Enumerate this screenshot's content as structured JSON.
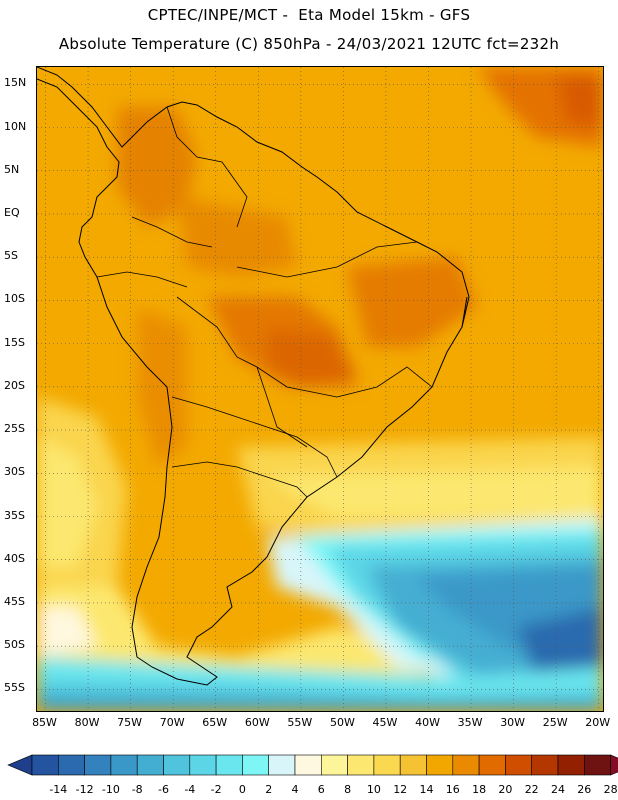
{
  "header": {
    "line1": "CPTEC/INPE/MCT -  Eta Model 15km - GFS",
    "line2": "Absolute Temperature (C) 850hPa - 24/03/2021 12UTC fct=232h"
  },
  "map": {
    "lat_labels": [
      "15N",
      "10N",
      "5N",
      "EQ",
      "5S",
      "10S",
      "15S",
      "20S",
      "25S",
      "30S",
      "35S",
      "40S",
      "45S",
      "50S",
      "55S"
    ],
    "lon_labels": [
      "85W",
      "80W",
      "75W",
      "70W",
      "65W",
      "60W",
      "55W",
      "50W",
      "45W",
      "40W",
      "35W",
      "30W",
      "25W",
      "20W"
    ],
    "lat_range": [
      17,
      -57.5
    ],
    "lon_range": [
      -86,
      -19.5
    ]
  },
  "colorbar": {
    "labels": [
      "-14",
      "-12",
      "-10",
      "-8",
      "-6",
      "-4",
      "-2",
      "0",
      "2",
      "4",
      "6",
      "8",
      "10",
      "12",
      "14",
      "16",
      "18",
      "20",
      "22",
      "24",
      "26",
      "28"
    ],
    "colors": [
      "#1f3f8c",
      "#24549f",
      "#2b6aae",
      "#3381bd",
      "#3a98c8",
      "#44aed2",
      "#4fc4dc",
      "#5cd6e6",
      "#6ae6ee",
      "#7ef6f6",
      "#d8f6fa",
      "#fff8e0",
      "#fcf59a",
      "#fce870",
      "#fad850",
      "#f5c233",
      "#f2a700",
      "#ea8a00",
      "#e26b00",
      "#cf4e00",
      "#b43600",
      "#932000",
      "#6f1212",
      "#860c26"
    ]
  }
}
